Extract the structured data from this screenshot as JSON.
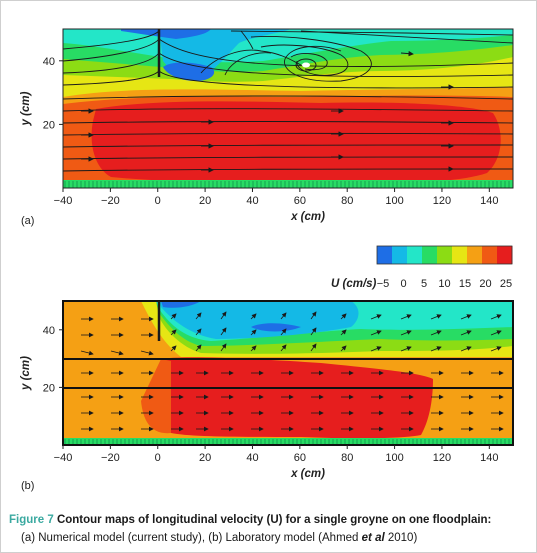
{
  "caption": {
    "label": "Figure 7",
    "title": "Contour maps of longitudinal velocity (U) for a single groyne on one floodplain:",
    "line2_a": "(a) Numerical model (current study), (b) Laboratory model (Ahmed ",
    "line2_em": "et al",
    "line2_b": " 2010)"
  },
  "colors": {
    "levels": [
      "#1e6ee6",
      "#14b9e6",
      "#23e6c8",
      "#28dc64",
      "#8cdc14",
      "#e6e614",
      "#f5a014",
      "#f05a14",
      "#e61e1e"
    ]
  },
  "legend": {
    "title": "U (cm/s)",
    "ticks": [
      "−5",
      "0",
      "5",
      "10",
      "15",
      "20",
      "25"
    ]
  },
  "chart_data": [
    {
      "type": "heatmap",
      "panel": "(a)",
      "xlabel": "x (cm)",
      "ylabel": "y (cm)",
      "xlim": [
        -40,
        150
      ],
      "ylim": [
        0,
        50
      ],
      "xticks": [
        "−40",
        "−20",
        "0",
        "20",
        "40",
        "60",
        "80",
        "100",
        "120",
        "140"
      ],
      "yticks": [
        "20",
        "40"
      ],
      "groyne": {
        "x": 0,
        "y_from": 30,
        "y_to": 50
      },
      "recirculation_eddy_center": {
        "x": 62,
        "y": 41
      },
      "zones": [
        {
          "U": 25,
          "region": "main channel core, x from -25 to 145, y from 3 to 27"
        },
        {
          "U": 20,
          "region": "surrounding the core, y 0 to 33"
        },
        {
          "U": 10,
          "region": "floodplain upstream of groyne, y 35 to 45"
        },
        {
          "U": -5,
          "region": "behind groyne, x 0 to 70, y 37 to 50"
        }
      ]
    },
    {
      "type": "heatmap",
      "panel": "(b)",
      "xlabel": "x (cm)",
      "ylabel": "y (cm)",
      "xlim": [
        -40,
        150
      ],
      "ylim": [
        0,
        50
      ],
      "xticks": [
        "−40",
        "−20",
        "0",
        "20",
        "40",
        "60",
        "80",
        "100",
        "120",
        "140"
      ],
      "yticks": [
        "20",
        "40"
      ],
      "groyne": {
        "x": 0,
        "y_from": 35,
        "y_to": 50
      },
      "bank_lines_y": [
        20,
        30
      ],
      "zones": [
        {
          "U": 25,
          "region": "main channel behind groyne, x 0 to 110, y 2 to 30"
        },
        {
          "U": 20,
          "region": "rest of the channel, y 0 to 35"
        },
        {
          "U": 15,
          "region": "floodplain strip, y 35 to 45"
        },
        {
          "U": -5,
          "region": "behind groyne, x 0 to 80, y 38 to 50"
        }
      ]
    }
  ]
}
